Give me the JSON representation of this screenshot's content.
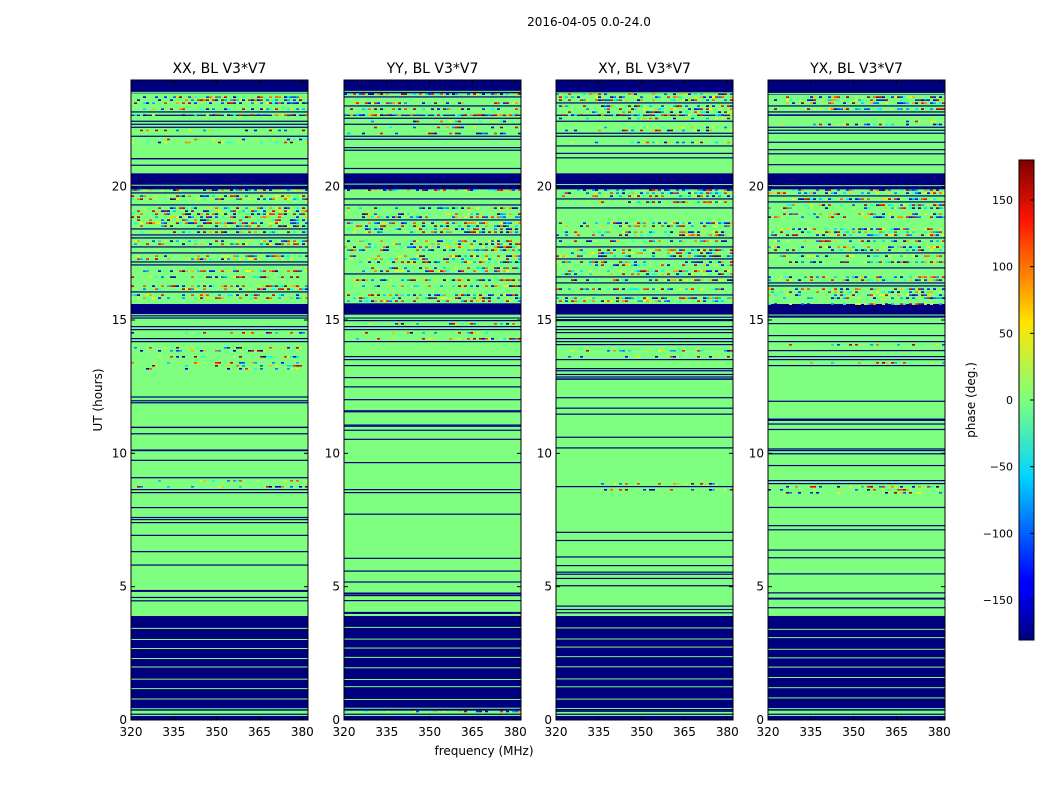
{
  "figure": {
    "suptitle": "2016-04-05 0.0-24.0",
    "xlabel": "frequency (MHz)",
    "ylabel": "UT (hours)"
  },
  "chart_data": {
    "type": "heatmap",
    "title": "2016-04-05 0.0-24.0",
    "xlabel": "frequency (MHz)",
    "ylabel": "UT (hours)",
    "xlim": [
      320,
      382
    ],
    "ylim": [
      0,
      24
    ],
    "xticks": [
      320,
      335,
      350,
      365,
      380
    ],
    "yticks": [
      0,
      5,
      10,
      15,
      20
    ],
    "colormap": "jet",
    "colorbar": {
      "label": "phase (deg.)",
      "range": [
        -180,
        180
      ],
      "ticks": [
        150,
        100,
        50,
        0,
        -50,
        -100,
        -150
      ],
      "tick_labels": [
        "150",
        "100",
        "50",
        "0",
        "−50",
        "−100",
        "−150"
      ]
    },
    "panels": [
      {
        "title": "XX, BL V3*V7"
      },
      {
        "title": "YY, BL V3*V7"
      },
      {
        "title": "XY, BL V3*V7"
      },
      {
        "title": "YX, BL V3*V7"
      }
    ],
    "bands": [
      {
        "ut": [
          0.0,
          0.15
        ],
        "kind": "flag"
      },
      {
        "ut": [
          0.15,
          0.35
        ],
        "kind": "sparse"
      },
      {
        "ut": [
          0.35,
          3.9
        ],
        "kind": "flag"
      },
      {
        "ut": [
          3.9,
          8.5
        ],
        "kind": "zero"
      },
      {
        "ut": [
          8.5,
          9.0
        ],
        "kind": "sparse"
      },
      {
        "ut": [
          9.0,
          13.2
        ],
        "kind": "zero"
      },
      {
        "ut": [
          13.2,
          15.0
        ],
        "kind": "sparse"
      },
      {
        "ut": [
          15.0,
          15.2
        ],
        "kind": "zero"
      },
      {
        "ut": [
          15.2,
          15.6
        ],
        "kind": "flag"
      },
      {
        "ut": [
          15.6,
          19.9
        ],
        "kind": "noisy"
      },
      {
        "ut": [
          19.9,
          20.5
        ],
        "kind": "flag"
      },
      {
        "ut": [
          20.5,
          21.6
        ],
        "kind": "zero"
      },
      {
        "ut": [
          21.6,
          22.7
        ],
        "kind": "sparse"
      },
      {
        "ut": [
          22.7,
          23.5
        ],
        "kind": "noisy"
      },
      {
        "ut": [
          23.5,
          24.0
        ],
        "kind": "flag"
      }
    ],
    "colors": {
      "zero_phase": "#7fff7f",
      "flagged": "#00007f",
      "gap_line": "#00007f"
    }
  }
}
